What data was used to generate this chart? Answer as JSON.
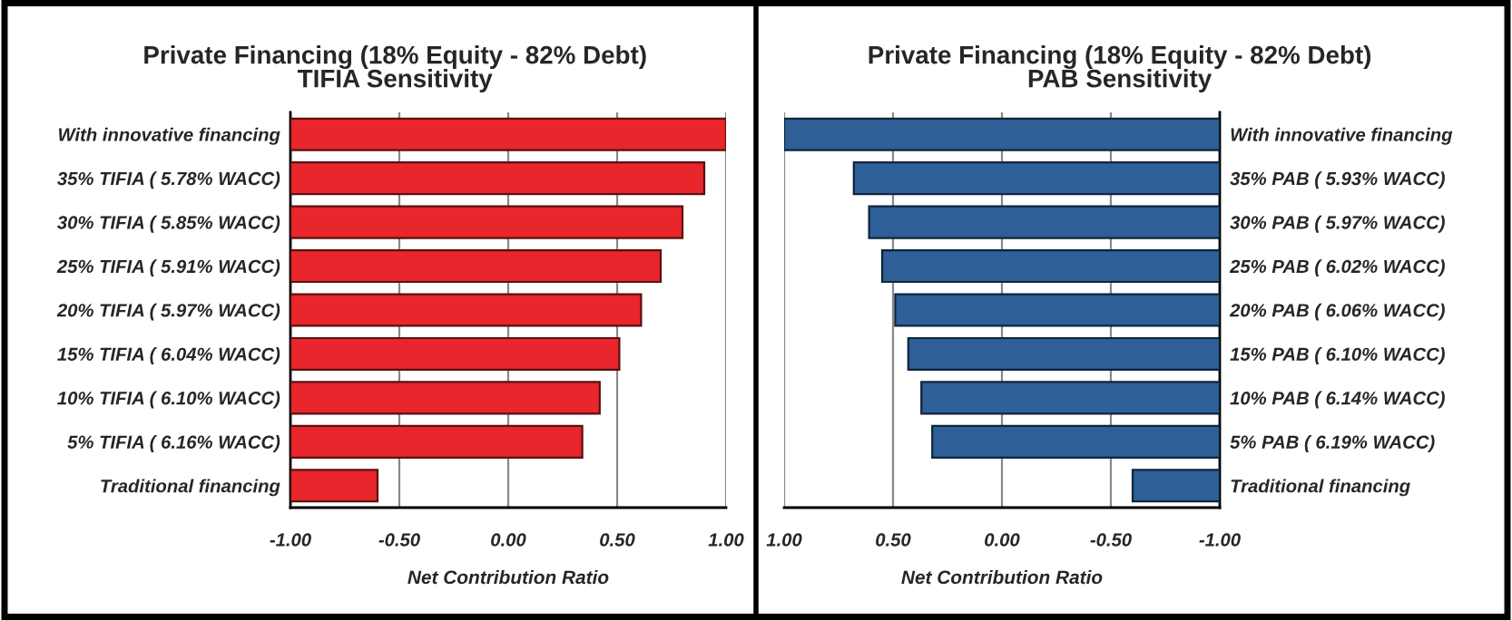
{
  "chart_data": [
    {
      "type": "bar",
      "orientation": "horizontal",
      "title": "Private Financing (18% Equity - 82% Debt)\nTIFIA Sensitivity",
      "xlabel": "Net Contribution Ratio",
      "categories": [
        "With innovative financing",
        "35% TIFIA ( 5.78% WACC)",
        "30% TIFIA ( 5.85% WACC)",
        "25% TIFIA ( 5.91% WACC)",
        "20% TIFIA ( 5.97% WACC)",
        "15% TIFIA ( 6.04% WACC)",
        "10% TIFIA ( 6.10% WACC)",
        "5% TIFIA ( 6.16% WACC)",
        "Traditional financing"
      ],
      "base": [
        -1,
        -1,
        -1,
        -1,
        -1,
        -1,
        -1,
        -1,
        -1
      ],
      "values": [
        2.0,
        1.9,
        1.8,
        1.7,
        1.61,
        1.51,
        1.42,
        1.34,
        0.4
      ],
      "color": "#e8262b",
      "xlim": [
        -1,
        1
      ],
      "xticks": [
        {
          "value": -1,
          "label": "-1.00"
        },
        {
          "value": -0.5,
          "label": "-0.50"
        },
        {
          "value": 0,
          "label": "0.00"
        },
        {
          "value": 0.5,
          "label": "0.50"
        },
        {
          "value": 1,
          "label": "1.00"
        }
      ],
      "grid": "x",
      "legend": false
    },
    {
      "type": "bar",
      "orientation": "horizontal",
      "title": "Private Financing (18% Equity - 82% Debt)\nPAB Sensitivity",
      "xlabel": "Net Contribution Ratio",
      "categories": [
        "With innovative financing",
        "35% PAB ( 5.93% WACC)",
        "30% PAB ( 5.97% WACC)",
        "25% PAB ( 6.02% WACC)",
        "20% PAB ( 6.06% WACC)",
        "15% PAB ( 6.10% WACC)",
        "10% PAB ( 6.14% WACC)",
        "5% PAB ( 6.19% WACC)",
        "Traditional financing"
      ],
      "base": [
        -1,
        -1,
        -1,
        -1,
        -1,
        -1,
        -1,
        -1,
        -1
      ],
      "values": [
        2.0,
        1.68,
        1.61,
        1.55,
        1.49,
        1.43,
        1.37,
        1.32,
        0.4
      ],
      "color": "#2e5f96",
      "xlim": [
        1,
        -1
      ],
      "xticks": [
        {
          "value": 1,
          "label": "1.00"
        },
        {
          "value": 0.5,
          "label": "0.50"
        },
        {
          "value": 0,
          "label": "0.00"
        },
        {
          "value": -0.5,
          "label": "-0.50"
        },
        {
          "value": -1,
          "label": "-1.00"
        }
      ],
      "grid": "x",
      "legend": false
    }
  ]
}
